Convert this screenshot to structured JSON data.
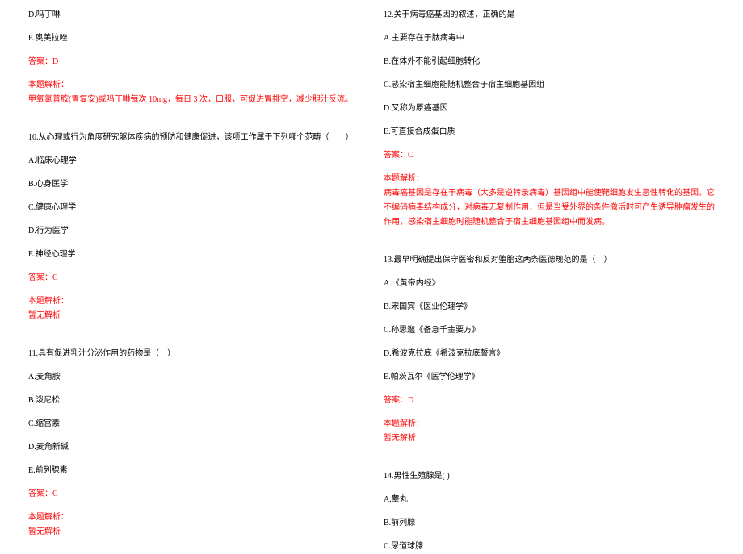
{
  "styling": {
    "fontSize": "10px",
    "blackColor": "#000000",
    "redColor": "#ff0000",
    "backgroundColor": "#ffffff",
    "lineHeight": 1.8,
    "columnWidth": "50%",
    "fontFamily": "SimSun"
  },
  "leftColumn": {
    "q9_tail": {
      "optD": "D.吗丁啉",
      "optE": "E.奥美拉唑",
      "answer": "答案：D",
      "explainLabel": "本题解析：",
      "explain": "甲氧氯普胺(胃复安)或吗丁啉每次 10mg，每日 3 次，口服，可促进胃排空，减少胆汁反流。"
    },
    "q10": {
      "stem": "10.从心理或行为角度研究躯体疾病的预防和健康促进，该项工作属于下列哪个范畴（　　）",
      "optA": "A.临床心理学",
      "optB": "B.心身医学",
      "optC": "C.健康心理学",
      "optD": "D.行为医学",
      "optE": "E.神经心理学",
      "answer": "答案：C",
      "explainLabel": "本题解析：",
      "explain": "暂无解析"
    },
    "q11": {
      "stem": "11.具有促进乳汁分泌作用的药物是（　）",
      "optA": "A.麦角胺",
      "optB": "B.泼尼松",
      "optC": "C.缩宫素",
      "optD": "D.麦角新碱",
      "optE": "E.前列腺素",
      "answer": "答案：C",
      "explainLabel": "本题解析：",
      "explain": "暂无解析"
    }
  },
  "rightColumn": {
    "q12": {
      "stem": "12.关于病毒癌基因的叙述，正确的是",
      "optA": "A.主要存在于肽病毒中",
      "optB": "B.在体外不能引起细胞转化",
      "optC": "C.感染宿主细胞能随机整合于宿主细胞基因组",
      "optD": "D.又称为原癌基因",
      "optE": "E.可直接合成蛋白质",
      "answer": "答案：C",
      "explainLabel": "本题解析：",
      "explain": "病毒癌基因是存在于病毒（大多是逆转录病毒）基因组中能使靶细胞发生恶性转化的基因。它不编码病毒结构成分，对病毒无复制作用，但是当受外界的条件激活时可产生诱导肿瘤发生的作用，感染宿主细胞时能随机整合于宿主细胞基因组中而发病。"
    },
    "q13": {
      "stem": "13.最早明确提出保守医密和反对堕胎这两条医德规范的是（　）",
      "optA": "A.《黄帝内经》",
      "optB": "B.宋国宾《医业伦理学》",
      "optC": "C.孙思邈《备急千金要方》",
      "optD": "D.希波克拉底《希波克拉底誓言》",
      "optE": "E.帕茨瓦尔《医学伦理学》",
      "answer": "答案：D",
      "explainLabel": "本题解析：",
      "explain": "暂无解析"
    },
    "q14": {
      "stem": "14.男性生殖腺是( )",
      "optA": "A.睾丸",
      "optB": "B.前列腺",
      "optC": "C.尿道球腺"
    }
  }
}
